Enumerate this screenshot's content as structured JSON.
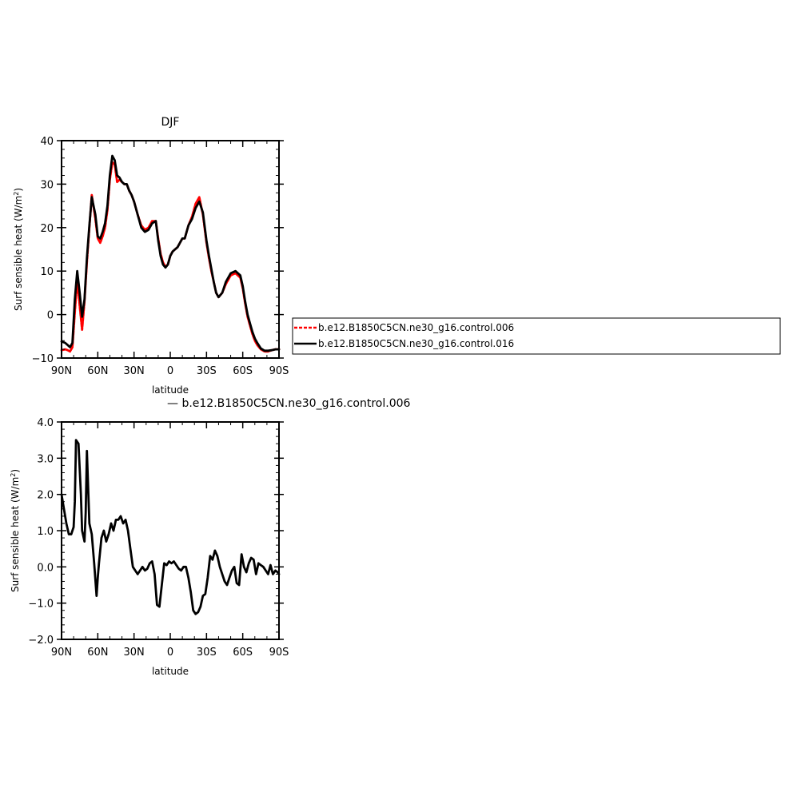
{
  "chart_data": [
    {
      "type": "line",
      "title": "DJF",
      "xlabel": "latitude",
      "ylabel_main": "Surf sensible heat (W/m",
      "ylabel_sup": "2",
      "ylabel_tail": ")",
      "xlim": [
        90,
        -90
      ],
      "ylim": [
        -10,
        40
      ],
      "x_ticks": [
        90,
        60,
        30,
        0,
        -30,
        -60,
        -90
      ],
      "x_tick_labels": [
        "90N",
        "60N",
        "30N",
        "0",
        "30S",
        "60S",
        "90S"
      ],
      "y_ticks": [
        -10,
        0,
        10,
        20,
        30,
        40
      ],
      "y_tick_labels": [
        "−10",
        "0",
        "10",
        "20",
        "30",
        "40"
      ],
      "legend_position": "right",
      "series": [
        {
          "name": "b.e12.B1850C5CN.ne30_g16.control.006",
          "color": "#ff0000",
          "dashed": true,
          "x": [
            90,
            87,
            85,
            83,
            81,
            79,
            77,
            75,
            73,
            71,
            69,
            67,
            65,
            62,
            60,
            58,
            56,
            54,
            52,
            50,
            48,
            46,
            44,
            42,
            40,
            38,
            36,
            34,
            32,
            30,
            27,
            24,
            21,
            18,
            15,
            12,
            10,
            8,
            6,
            4,
            2,
            0,
            -2,
            -4,
            -6,
            -8,
            -10,
            -12,
            -15,
            -18,
            -21,
            -24,
            -27,
            -30,
            -32,
            -34,
            -36,
            -38,
            -40,
            -43,
            -46,
            -50,
            -54,
            -58,
            -60,
            -62,
            -64,
            -66,
            -68,
            -70,
            -72,
            -75,
            -78,
            -81,
            -84,
            -87,
            -90
          ],
          "values": [
            -8.2,
            -8.0,
            -8.2,
            -8.5,
            -7.5,
            0.5,
            8.0,
            2.0,
            -3.5,
            3.0,
            12.0,
            20.0,
            27.5,
            22.0,
            17.5,
            16.5,
            18.0,
            20.0,
            24.0,
            31.0,
            35.0,
            34.5,
            30.5,
            31.0,
            30.5,
            30.0,
            30.0,
            28.5,
            27.5,
            26.0,
            23.0,
            20.5,
            19.5,
            20.0,
            21.5,
            21.5,
            17.5,
            14.0,
            12.0,
            11.0,
            11.5,
            13.5,
            14.5,
            15.0,
            15.5,
            16.5,
            17.5,
            17.5,
            20.5,
            22.5,
            25.5,
            27.0,
            23.0,
            16.5,
            13.0,
            10.0,
            7.5,
            5.0,
            4.0,
            5.0,
            7.0,
            9.0,
            9.5,
            8.5,
            6.0,
            2.5,
            -0.5,
            -2.5,
            -4.5,
            -6.0,
            -7.0,
            -8.0,
            -8.5,
            -8.5,
            -8.2,
            -8.0,
            -8.0
          ]
        },
        {
          "name": "b.e12.B1850C5CN.ne30_g16.control.016",
          "color": "#000000",
          "dashed": false,
          "x": [
            90,
            87,
            85,
            83,
            81,
            79,
            77,
            75,
            73,
            71,
            69,
            67,
            65,
            62,
            60,
            58,
            56,
            54,
            52,
            50,
            48,
            46,
            44,
            42,
            40,
            38,
            36,
            34,
            32,
            30,
            27,
            24,
            21,
            18,
            15,
            12,
            10,
            8,
            6,
            4,
            2,
            0,
            -2,
            -4,
            -6,
            -8,
            -10,
            -12,
            -15,
            -18,
            -21,
            -24,
            -27,
            -30,
            -32,
            -34,
            -36,
            -38,
            -40,
            -43,
            -46,
            -50,
            -54,
            -58,
            -60,
            -62,
            -64,
            -66,
            -68,
            -70,
            -72,
            -75,
            -78,
            -81,
            -84,
            -87,
            -90
          ],
          "values": [
            -6.2,
            -6.5,
            -7.0,
            -7.5,
            -6.5,
            3.5,
            10.0,
            5.0,
            -0.5,
            3.5,
            13.0,
            20.5,
            27.0,
            23.0,
            18.0,
            17.5,
            19.0,
            21.0,
            25.0,
            32.0,
            36.5,
            35.5,
            32.0,
            31.5,
            30.5,
            30.0,
            30.0,
            28.5,
            27.5,
            26.0,
            23.0,
            20.0,
            19.0,
            19.5,
            21.0,
            21.5,
            17.0,
            13.5,
            11.5,
            10.8,
            11.5,
            13.5,
            14.5,
            15.0,
            15.5,
            16.5,
            17.5,
            17.5,
            20.5,
            22.0,
            24.5,
            26.0,
            23.5,
            17.0,
            13.5,
            10.5,
            7.5,
            5.0,
            4.0,
            5.0,
            7.5,
            9.5,
            10.0,
            9.0,
            6.5,
            3.0,
            0.0,
            -2.0,
            -4.0,
            -5.5,
            -6.5,
            -7.8,
            -8.3,
            -8.3,
            -8.2,
            -8.0,
            -8.0
          ]
        }
      ]
    },
    {
      "type": "line",
      "title": "",
      "subtitle": "— b.e12.B1850C5CN.ne30_g16.control.006",
      "xlabel": "latitude",
      "ylabel_main": "Surf sensible heat (W/m",
      "ylabel_sup": "2",
      "ylabel_tail": ")",
      "xlim": [
        90,
        -90
      ],
      "ylim": [
        -2.0,
        4.0
      ],
      "x_ticks": [
        90,
        60,
        30,
        0,
        -30,
        -60,
        -90
      ],
      "x_tick_labels": [
        "90N",
        "60N",
        "30N",
        "0",
        "30S",
        "60S",
        "90S"
      ],
      "y_ticks": [
        -2.0,
        -1.0,
        0.0,
        1.0,
        2.0,
        3.0,
        4.0
      ],
      "y_tick_labels": [
        "−2.0",
        "−1.0",
        "0.0",
        "1.0",
        "2.0",
        "3.0",
        "4.0"
      ],
      "series": [
        {
          "color": "#000000",
          "dashed": false,
          "x": [
            90,
            88,
            86,
            84,
            82,
            80,
            79,
            78,
            76,
            74,
            73,
            71,
            70,
            69,
            67,
            65,
            63,
            61,
            60,
            59,
            57,
            55,
            53,
            51,
            49,
            47,
            45,
            43,
            41,
            39,
            37,
            35,
            33,
            31,
            29,
            27,
            25,
            23,
            21,
            19,
            17,
            15,
            13,
            11,
            9,
            7,
            5,
            3,
            1,
            -1,
            -3,
            -5,
            -7,
            -9,
            -11,
            -13,
            -15,
            -17,
            -19,
            -21,
            -23,
            -25,
            -27,
            -29,
            -31,
            -33,
            -35,
            -37,
            -39,
            -41,
            -43,
            -45,
            -47,
            -49,
            -51,
            -53,
            -55,
            -57,
            -59,
            -61,
            -63,
            -65,
            -67,
            -69,
            -71,
            -73,
            -75,
            -77,
            -79,
            -81,
            -83,
            -85,
            -87,
            -89,
            -90
          ],
          "values": [
            2.0,
            1.6,
            1.2,
            0.9,
            0.9,
            1.1,
            1.8,
            3.5,
            3.4,
            2.0,
            1.0,
            0.7,
            1.5,
            3.2,
            1.2,
            0.9,
            0.1,
            -0.8,
            -0.3,
            0.1,
            0.8,
            1.0,
            0.7,
            0.9,
            1.2,
            1.0,
            1.3,
            1.3,
            1.4,
            1.2,
            1.3,
            1.0,
            0.5,
            0.0,
            -0.1,
            -0.2,
            -0.1,
            0.0,
            -0.1,
            -0.05,
            0.1,
            0.15,
            -0.2,
            -1.05,
            -1.1,
            -0.5,
            0.1,
            0.05,
            0.15,
            0.1,
            0.15,
            0.05,
            -0.05,
            -0.1,
            0.0,
            0.0,
            -0.3,
            -0.7,
            -1.2,
            -1.3,
            -1.25,
            -1.1,
            -0.8,
            -0.75,
            -0.3,
            0.3,
            0.2,
            0.45,
            0.3,
            0.0,
            -0.2,
            -0.4,
            -0.5,
            -0.3,
            -0.1,
            0.0,
            -0.45,
            -0.5,
            0.35,
            0.0,
            -0.15,
            0.1,
            0.25,
            0.2,
            -0.2,
            0.1,
            0.05,
            0.0,
            -0.1,
            -0.2,
            0.05,
            -0.2,
            -0.1,
            -0.15,
            -0.2
          ]
        }
      ]
    }
  ]
}
